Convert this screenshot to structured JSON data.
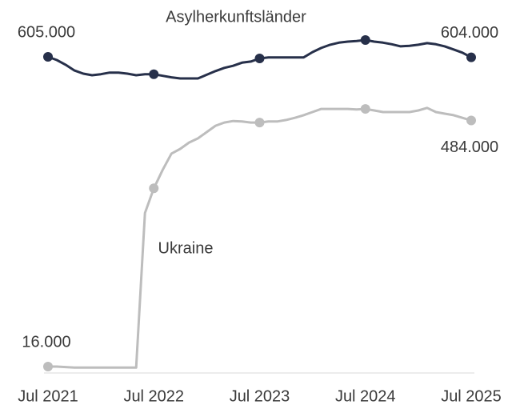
{
  "chart_data": {
    "type": "line",
    "categories": [
      "Jul 2021",
      null,
      null,
      null,
      null,
      null,
      null,
      null,
      null,
      null,
      null,
      null,
      "Jul 2022",
      null,
      null,
      null,
      null,
      null,
      null,
      null,
      null,
      null,
      null,
      null,
      "Jul 2023",
      null,
      null,
      null,
      null,
      null,
      null,
      null,
      null,
      null,
      null,
      null,
      "Jul 2024",
      null,
      null,
      null,
      null,
      null,
      null,
      null,
      null,
      null,
      null,
      null,
      "Jul 2025"
    ],
    "series": [
      {
        "name": "Asylherkunftsländer",
        "color": "#27304a",
        "values": [
          605000,
          599000,
          590000,
          579000,
          573000,
          570000,
          572000,
          575000,
          575000,
          573000,
          570000,
          572000,
          572000,
          569000,
          566000,
          564000,
          564000,
          564000,
          571000,
          578000,
          584000,
          588000,
          594000,
          596000,
          602000,
          604000,
          604000,
          604000,
          604000,
          604000,
          614000,
          622000,
          628000,
          632000,
          634000,
          635000,
          637000,
          634000,
          632000,
          629000,
          625000,
          626000,
          628000,
          631000,
          629000,
          625000,
          619000,
          613000,
          604000
        ],
        "value_labels": [
          "605.000",
          null,
          null,
          null,
          null,
          null,
          null,
          null,
          null,
          null,
          null,
          null,
          null,
          null,
          null,
          null,
          null,
          null,
          null,
          null,
          null,
          null,
          null,
          null,
          null,
          null,
          null,
          null,
          null,
          null,
          null,
          null,
          null,
          null,
          null,
          null,
          null,
          null,
          null,
          null,
          null,
          null,
          null,
          null,
          null,
          null,
          null,
          null,
          "604.000"
        ]
      },
      {
        "name": "Ukraine",
        "color": "#bdbdbd",
        "values": [
          16000,
          16000,
          15000,
          14000,
          14000,
          14000,
          14000,
          14000,
          14000,
          14000,
          14000,
          308000,
          355000,
          390000,
          421000,
          430000,
          442000,
          450000,
          462000,
          474000,
          480000,
          483000,
          482000,
          480000,
          480000,
          482000,
          482000,
          485000,
          489000,
          494000,
          500000,
          506000,
          506000,
          506000,
          506000,
          505000,
          506000,
          503000,
          500000,
          500000,
          500000,
          500000,
          503000,
          508000,
          500000,
          497000,
          494000,
          489000,
          484000
        ],
        "value_labels": [
          "16.000",
          null,
          null,
          null,
          null,
          null,
          null,
          null,
          null,
          null,
          null,
          null,
          null,
          null,
          null,
          null,
          null,
          null,
          null,
          null,
          null,
          null,
          null,
          null,
          null,
          null,
          null,
          null,
          null,
          null,
          null,
          null,
          null,
          null,
          null,
          null,
          null,
          null,
          null,
          null,
          null,
          null,
          null,
          null,
          null,
          null,
          null,
          null,
          "484.000"
        ]
      }
    ]
  }
}
